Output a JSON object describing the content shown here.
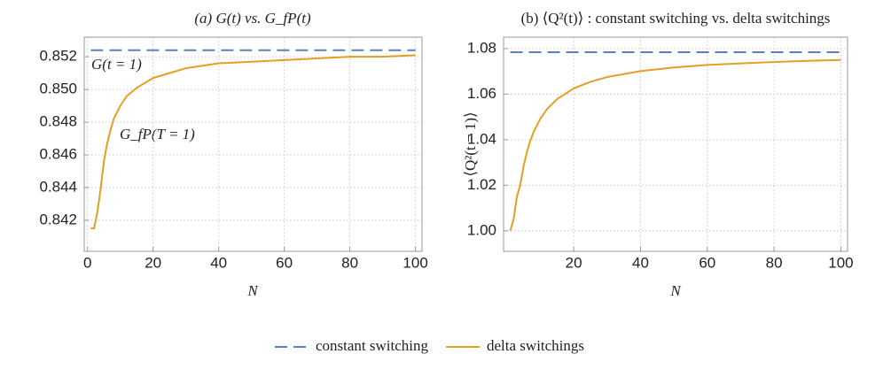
{
  "chart_data": [
    {
      "type": "line",
      "title": "(a)   G(t) vs. G_fP(t)",
      "x_label": "N",
      "annotations": [
        "G(t = 1)",
        "G_fP(T = 1)"
      ],
      "x": [
        1,
        2,
        3,
        4,
        5,
        6,
        7,
        8,
        10,
        12,
        15,
        20,
        25,
        30,
        40,
        50,
        60,
        70,
        80,
        90,
        100
      ],
      "xlim": [
        -1,
        102
      ],
      "xticks": [
        0,
        20,
        40,
        60,
        80,
        100
      ],
      "ylim": [
        0.8401,
        0.8532
      ],
      "yticks": [
        {
          "value": 0.842,
          "label": "0.842"
        },
        0.844,
        0.846,
        0.848,
        {
          "value": 0.85,
          "label": "0.850"
        },
        0.852
      ],
      "grid": true,
      "series": [
        {
          "name": "constant switching",
          "color": "#5b7fbd",
          "dashed": true,
          "values": [
            0.8524,
            0.8524,
            0.8524,
            0.8524,
            0.8524,
            0.8524,
            0.8524,
            0.8524,
            0.8524,
            0.8524,
            0.8524,
            0.8524,
            0.8524,
            0.8524,
            0.8524,
            0.8524,
            0.8524,
            0.8524,
            0.8524,
            0.8524,
            0.8524
          ]
        },
        {
          "name": "delta switchings",
          "color": "#e59e24",
          "dashed": false,
          "values": [
            0.8415,
            0.8415,
            0.8425,
            0.8439,
            0.8456,
            0.8467,
            0.8475,
            0.8482,
            0.849,
            0.8496,
            0.8501,
            0.8507,
            0.851,
            0.8513,
            0.8516,
            0.8517,
            0.8518,
            0.8519,
            0.852,
            0.852,
            0.8521
          ]
        }
      ]
    },
    {
      "type": "line",
      "title": "(b) ⟨Q²(t)⟩ : constant switching vs. delta switchings",
      "x_label": "N",
      "y_label": "⟨Q²(t = 1)⟩",
      "x": [
        1,
        2,
        3,
        4,
        5,
        6,
        7,
        8,
        10,
        12,
        15,
        20,
        25,
        30,
        40,
        50,
        60,
        70,
        80,
        90,
        100
      ],
      "xlim": [
        -1,
        102
      ],
      "xticks": [
        20,
        40,
        60,
        80,
        100
      ],
      "ylim": [
        0.991,
        1.085
      ],
      "yticks": [
        {
          "value": 1,
          "label": "1.00"
        },
        1.02,
        1.04,
        1.06,
        1.08
      ],
      "grid": true,
      "series": [
        {
          "name": "constant switching",
          "color": "#5b7fbd",
          "dashed": true,
          "values": [
            1.0784,
            1.0784,
            1.0784,
            1.0784,
            1.0784,
            1.0784,
            1.0784,
            1.0784,
            1.0784,
            1.0784,
            1.0784,
            1.0784,
            1.0784,
            1.0784,
            1.0784,
            1.0784,
            1.0784,
            1.0784,
            1.0784,
            1.0784,
            1.0784
          ]
        },
        {
          "name": "delta switchings",
          "color": "#e59e24",
          "dashed": false,
          "values": [
            1.0,
            1.005,
            1.015,
            1.0201,
            1.0284,
            1.0347,
            1.0395,
            1.0434,
            1.0492,
            1.0534,
            1.0578,
            1.0625,
            1.0654,
            1.0675,
            1.0701,
            1.0717,
            1.0728,
            1.0735,
            1.0741,
            1.0746,
            1.075
          ]
        }
      ]
    }
  ]
}
